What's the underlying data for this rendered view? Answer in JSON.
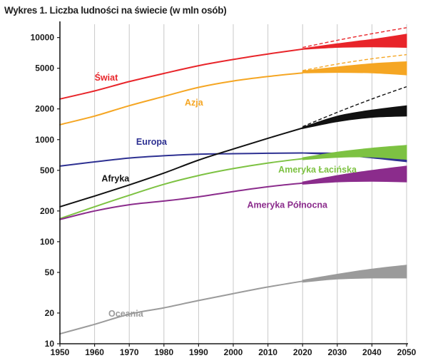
{
  "title": "Wykres 1. Liczba ludności na świecie (w mln osób)",
  "chart_data": {
    "type": "line",
    "title": "Wykres 1. Liczba ludności na świecie (w mln osób)",
    "xlabel": "",
    "ylabel": "",
    "y_scale": "log",
    "xlim": [
      1950,
      2050
    ],
    "ylim": [
      10,
      13500
    ],
    "x_ticks": [
      1950,
      1960,
      1970,
      1980,
      1990,
      2000,
      2010,
      2020,
      2030,
      2040,
      2050
    ],
    "y_ticks": [
      10,
      20,
      50,
      100,
      200,
      500,
      1000,
      2000,
      5000,
      10000
    ],
    "grid": "vertical",
    "series": [
      {
        "name": "Świat",
        "color": "#e8252a",
        "label_at": [
          1960,
          3800
        ],
        "x": [
          1950,
          1960,
          1970,
          1980,
          1990,
          2000,
          2010,
          2020
        ],
        "values": [
          2500,
          3000,
          3700,
          4450,
          5300,
          6100,
          6900,
          7700
        ],
        "band_x": [
          2020,
          2030,
          2040,
          2050
        ],
        "band_low": [
          7650,
          8000,
          8100,
          8000
        ],
        "band_high": [
          7800,
          8700,
          9600,
          10800
        ],
        "high_x": [
          2020,
          2030,
          2040,
          2050
        ],
        "high_values": [
          8000,
          9400,
          10900,
          12500
        ]
      },
      {
        "name": "Azja",
        "color": "#f5a623",
        "label_at": [
          1986,
          2150
        ],
        "x": [
          1950,
          1960,
          1970,
          1980,
          1990,
          2000,
          2010,
          2020
        ],
        "values": [
          1400,
          1700,
          2150,
          2650,
          3250,
          3750,
          4150,
          4500
        ],
        "band_x": [
          2020,
          2030,
          2040,
          2050
        ],
        "band_low": [
          4500,
          4550,
          4500,
          4300
        ],
        "band_high": [
          4700,
          5150,
          5550,
          5800
        ],
        "high_x": [
          2020,
          2030,
          2040,
          2050
        ],
        "high_values": [
          4750,
          5500,
          6200,
          6800
        ]
      },
      {
        "name": "Europa",
        "color": "#2e3192",
        "label_at": [
          1972,
          890
        ],
        "x": [
          1950,
          1960,
          1970,
          1980,
          1990,
          2000,
          2010,
          2020
        ],
        "values": [
          550,
          605,
          660,
          695,
          720,
          728,
          735,
          740
        ],
        "band_x": [
          2020,
          2030,
          2040,
          2050
        ],
        "band_low": [
          735,
          705,
          660,
          605
        ],
        "band_high": [
          745,
          740,
          730,
          720
        ]
      },
      {
        "name": "Afryka",
        "color": "#111111",
        "label_at": [
          1962,
          390
        ],
        "x": [
          1950,
          1960,
          1970,
          1980,
          1990,
          2000,
          2010,
          2020
        ],
        "values": [
          220,
          280,
          360,
          470,
          630,
          810,
          1030,
          1300
        ],
        "band_x": [
          2020,
          2030,
          2040,
          2050
        ],
        "band_low": [
          1280,
          1500,
          1650,
          1700
        ],
        "band_high": [
          1320,
          1700,
          1950,
          2150
        ],
        "high_x": [
          2020,
          2030,
          2040,
          2050
        ],
        "high_values": [
          1340,
          1850,
          2500,
          3300
        ]
      },
      {
        "name": "Ameryka Łacińska",
        "color": "#7dc242",
        "label_at": [
          2013,
          475
        ],
        "x": [
          1950,
          1960,
          1970,
          1980,
          1990,
          2000,
          2010,
          2020
        ],
        "values": [
          168,
          220,
          285,
          365,
          445,
          520,
          590,
          650
        ],
        "band_x": [
          2020,
          2030,
          2040,
          2050
        ],
        "band_low": [
          635,
          670,
          675,
          640
        ],
        "band_high": [
          665,
          755,
          825,
          880
        ]
      },
      {
        "name": "Ameryka Północna",
        "color": "#8b2c8c",
        "label_at": [
          2004,
          215
        ],
        "x": [
          1950,
          1960,
          1970,
          1980,
          1990,
          2000,
          2010,
          2020
        ],
        "values": [
          165,
          200,
          230,
          250,
          275,
          310,
          345,
          375
        ],
        "band_x": [
          2020,
          2030,
          2040,
          2050
        ],
        "band_low": [
          365,
          385,
          390,
          385
        ],
        "band_high": [
          385,
          445,
          500,
          550
        ]
      },
      {
        "name": "Oceania",
        "color": "#9b9b9b",
        "label_at": [
          1964,
          18.5
        ],
        "x": [
          1950,
          1960,
          1970,
          1980,
          1990,
          2000,
          2010,
          2020
        ],
        "values": [
          12.5,
          15.5,
          19.5,
          22.5,
          26.5,
          31,
          36,
          41
        ],
        "band_x": [
          2020,
          2030,
          2040,
          2050
        ],
        "band_low": [
          40,
          43,
          44,
          44
        ],
        "band_high": [
          42,
          48,
          54,
          59
        ]
      }
    ]
  }
}
